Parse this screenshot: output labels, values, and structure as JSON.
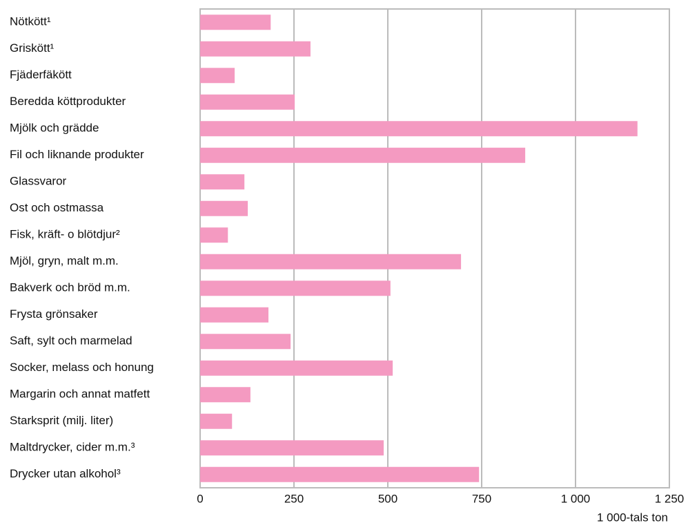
{
  "chart_data": {
    "type": "bar",
    "orientation": "horizontal",
    "categories": [
      "Nötkött¹",
      "Griskött¹",
      "Fjäderfäkött",
      "Beredda köttprodukter",
      "Mjölk och grädde",
      "Fil och liknande produkter",
      "Glassvaror",
      "Ost och ostmassa",
      "Fisk, kräft- o blötdjur²",
      "Mjöl, gryn, malt m.m.",
      "Bakverk och bröd m.m.",
      "Frysta grönsaker",
      "Saft, sylt och marmelad",
      "Socker, melass och honung",
      "Margarin och annat matfett",
      "Starksprit (milj. liter)",
      "Maltdrycker, cider m.m.³",
      "Drycker utan alkohol³"
    ],
    "values": [
      188,
      294,
      92,
      252,
      1165,
      866,
      118,
      127,
      74,
      695,
      507,
      182,
      241,
      513,
      134,
      85,
      489,
      743
    ],
    "color": "#f49ac1",
    "xlim": [
      0,
      1250
    ],
    "xticks": [
      0,
      250,
      500,
      750,
      {
        "value": 1000,
        "label": "1 000"
      },
      {
        "value": 1250,
        "label": "1 250"
      }
    ],
    "xlabel": "1 000-tals ton",
    "grid": true
  }
}
